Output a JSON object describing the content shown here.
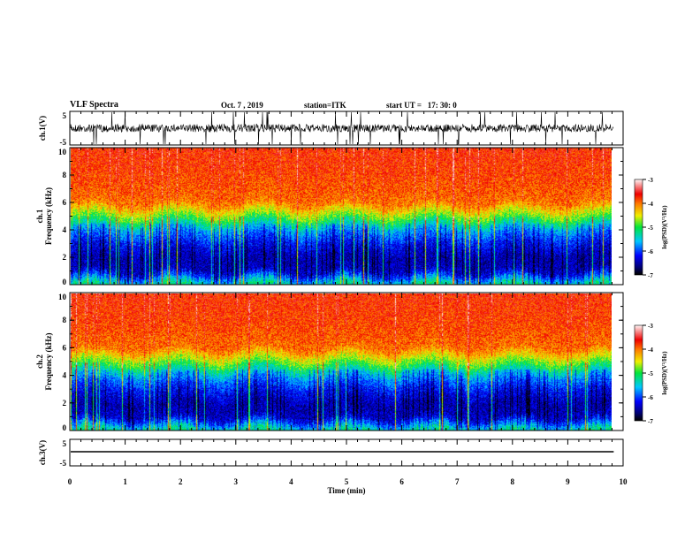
{
  "header": {
    "title": "VLF Spectra",
    "date": "Oct. 7 , 2019",
    "station": "station=ITK",
    "start": "start UT =   17: 30: 0"
  },
  "chart_data": [
    {
      "type": "line",
      "ylabel": "ch.1(V)",
      "ylim": [
        -5,
        5
      ],
      "yticks": [
        "5",
        "-5"
      ],
      "xlim": [
        0,
        10
      ],
      "description_values": {
        "baseline": 0,
        "noise_amplitude": 2,
        "spike_max": 5
      }
    },
    {
      "type": "heatmap",
      "ylabel": "ch.1\nFrequency (kHz)",
      "ylabel_lines": [
        "ch.1",
        "Frequency (kHz)"
      ],
      "ylim": [
        0,
        10
      ],
      "yticks": [
        "0",
        "2",
        "4",
        "6",
        "8",
        "10"
      ],
      "xlim": [
        0,
        10
      ],
      "colorbar": {
        "label": "log(PSD)(V²/Hz)",
        "range": [
          -7,
          -3
        ],
        "ticks": [
          "-3",
          "-4",
          "-5",
          "-6",
          "-7"
        ]
      },
      "profile_kHz_logpsd": [
        [
          0,
          -5.2
        ],
        [
          1,
          -6.4
        ],
        [
          2,
          -6.5
        ],
        [
          3,
          -6.2
        ],
        [
          4,
          -5.7
        ],
        [
          5,
          -4.8
        ],
        [
          6,
          -4.0
        ],
        [
          8,
          -3.8
        ],
        [
          10,
          -3.7
        ]
      ]
    },
    {
      "type": "heatmap",
      "ylabel": "ch.2\nFrequency (kHz)",
      "ylabel_lines": [
        "ch.2",
        "Frequency (kHz)"
      ],
      "ylim": [
        0,
        10
      ],
      "yticks": [
        "0",
        "2",
        "4",
        "6",
        "8",
        "10"
      ],
      "xlim": [
        0,
        10
      ],
      "colorbar": {
        "label": "log(PSD)(V²/Hz)",
        "range": [
          -7,
          -3
        ],
        "ticks": [
          "-3",
          "-4",
          "-5",
          "-6",
          "-7"
        ]
      },
      "profile_kHz_logpsd": [
        [
          0,
          -5.2
        ],
        [
          1,
          -6.4
        ],
        [
          2,
          -6.5
        ],
        [
          3,
          -6.2
        ],
        [
          4,
          -5.7
        ],
        [
          5,
          -4.8
        ],
        [
          6,
          -4.0
        ],
        [
          8,
          -3.8
        ],
        [
          10,
          -3.7
        ]
      ]
    },
    {
      "type": "line",
      "ylabel": "ch.3(V)",
      "ylim": [
        -5,
        5
      ],
      "yticks": [
        "5",
        "-5"
      ],
      "xlim": [
        0,
        10
      ],
      "xlabel": "Time (min)",
      "xticks": [
        "0",
        "1",
        "2",
        "3",
        "4",
        "5",
        "6",
        "7",
        "8",
        "9",
        "10"
      ],
      "description_values": {
        "baseline": 0
      }
    }
  ],
  "data_end_min": 9.83
}
